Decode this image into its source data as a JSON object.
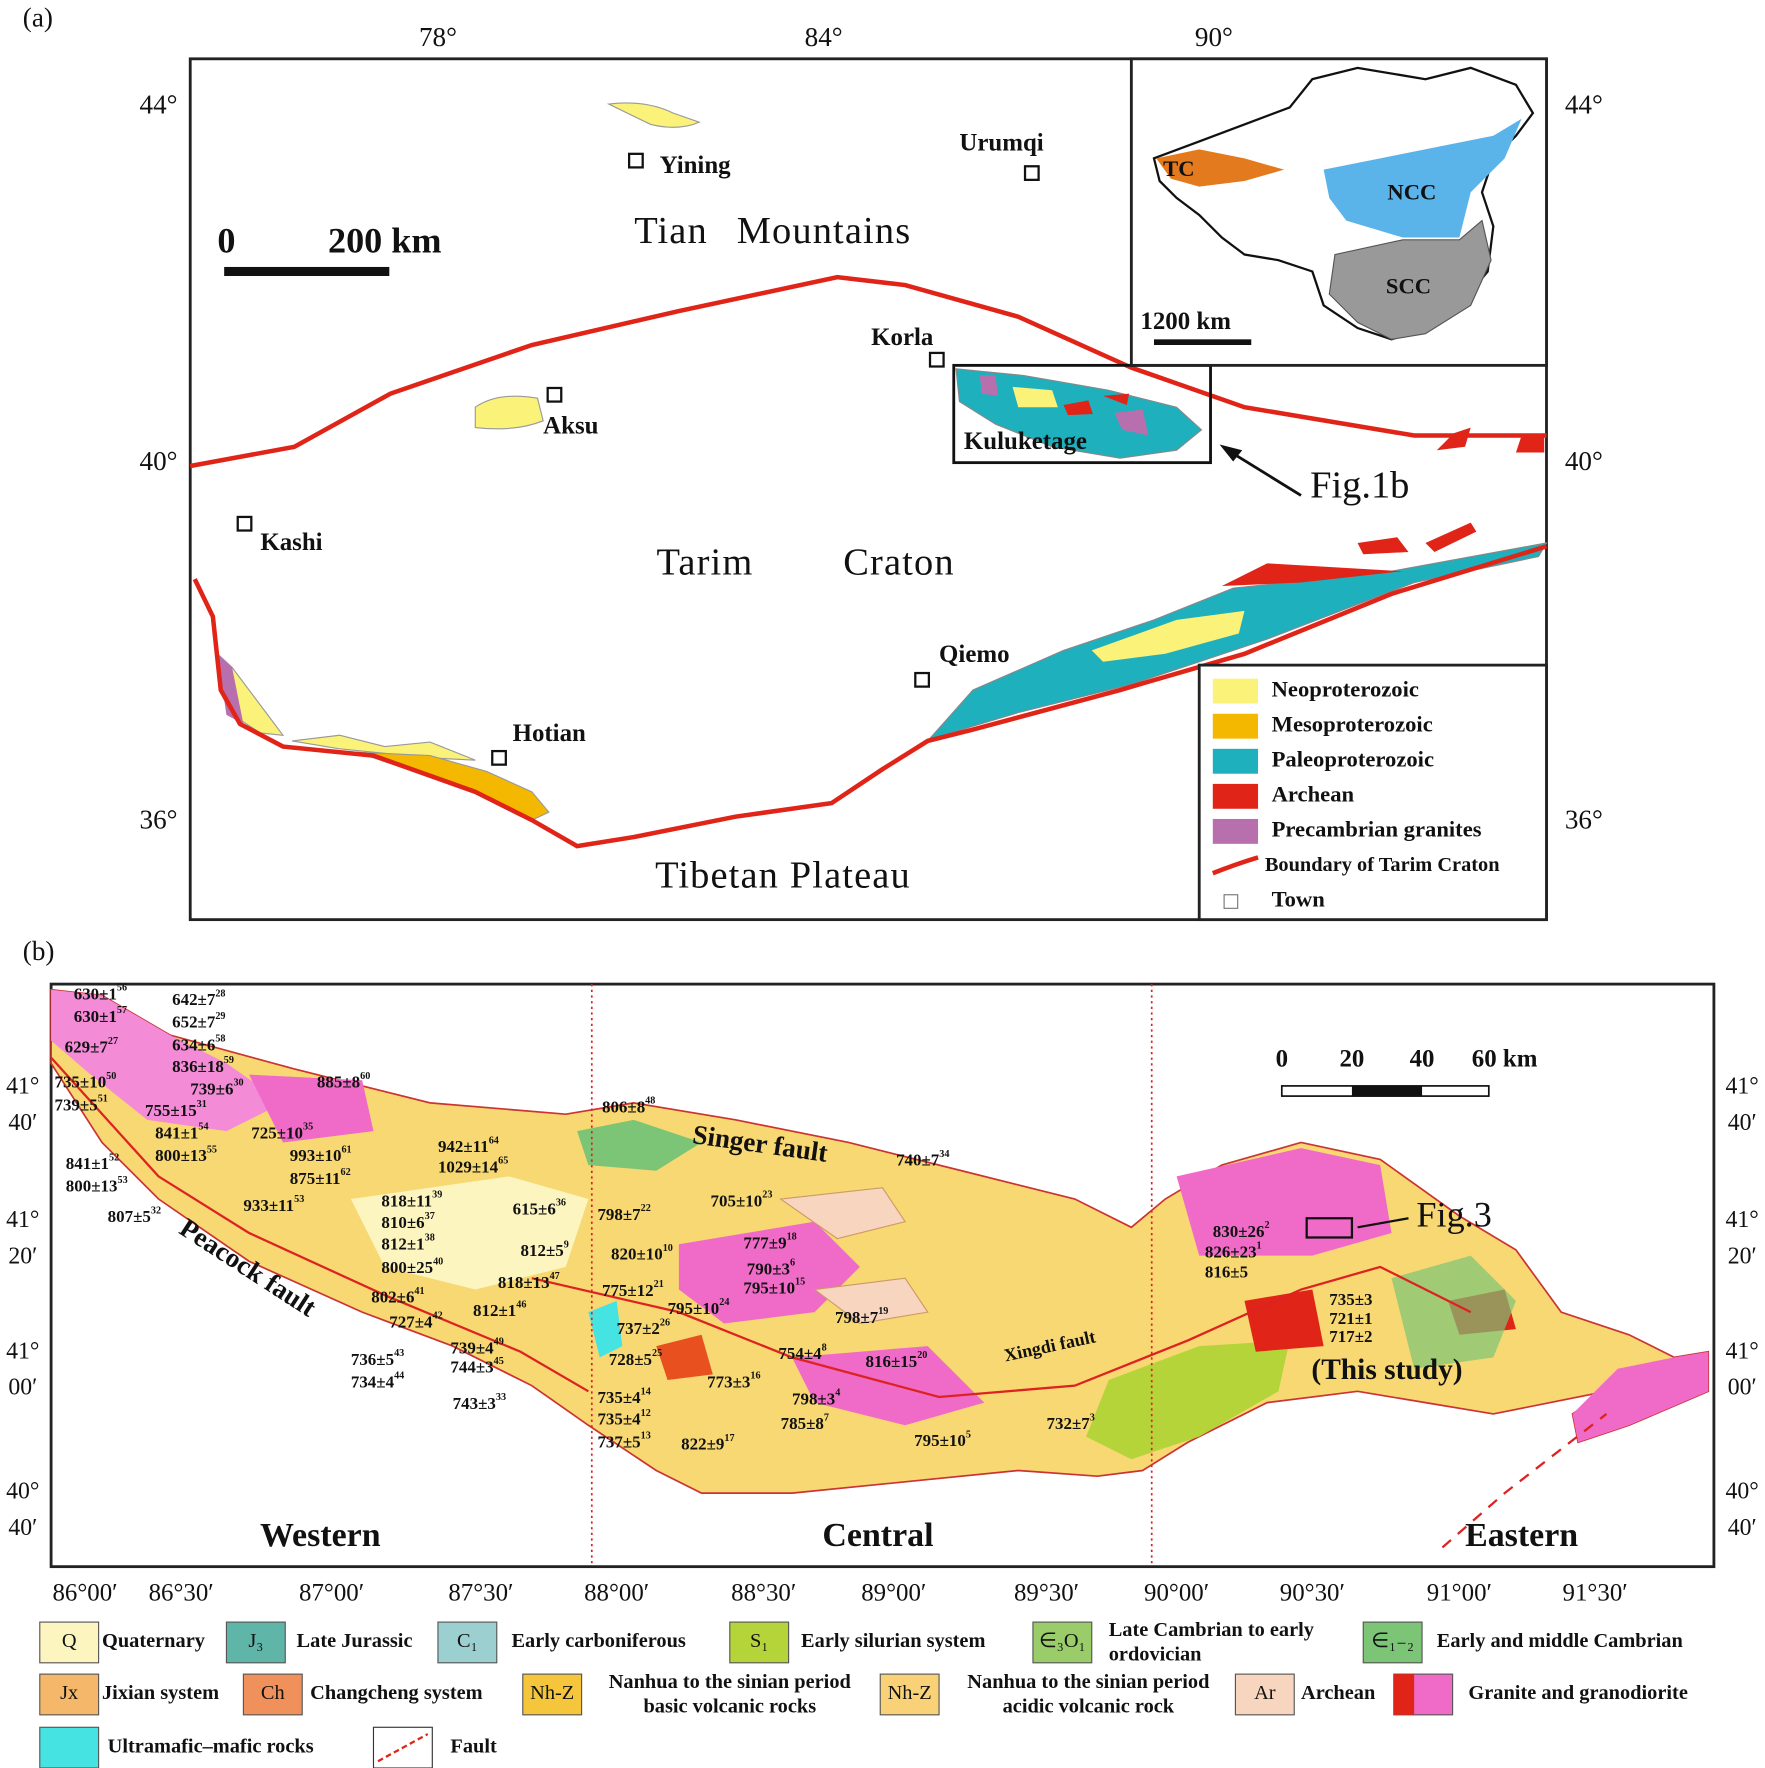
{
  "panel_a": {
    "label": "(a)",
    "longitudes": [
      "78°",
      "84°",
      "90°"
    ],
    "latitudes": [
      "44°",
      "40°",
      "36°"
    ],
    "towns": [
      "Yining",
      "Urumqi",
      "Korla",
      "Aksu",
      "Kashi",
      "Qiemo",
      "Hotian"
    ],
    "regions": [
      "Tian Mountains",
      "Tarim Craton",
      "Tibetan Plateau"
    ],
    "area": "Kuluketage",
    "scale": [
      "0",
      "200 km"
    ],
    "callout": "Fig.1b",
    "inset": {
      "blocks": [
        "TC",
        "NCC",
        "SCC"
      ],
      "scale": "1200 km"
    },
    "legend": [
      {
        "label": "Neoproterozoic",
        "color": "#fbf27a"
      },
      {
        "label": "Mesoproterozoic",
        "color": "#f5b800"
      },
      {
        "label": "Paleoproterozoic",
        "color": "#1fb0bd"
      },
      {
        "label": "Archean",
        "color": "#e02418"
      },
      {
        "label": "Precambrian granites",
        "color": "#b86fae"
      },
      {
        "label": "Boundary of Tarim Craton",
        "color": "#e02418"
      },
      {
        "label": "Town"
      }
    ]
  },
  "panel_b": {
    "label": "(b)",
    "longitudes": [
      "86°00′",
      "86°30′",
      "87°00′",
      "87°30′",
      "88°00′",
      "88°30′",
      "89°00′",
      "89°30′",
      "90°00′",
      "90°30′",
      "91°00′",
      "91°30′"
    ],
    "latitudes": [
      [
        "41°",
        "40′"
      ],
      [
        "41°",
        "20′"
      ],
      [
        "41°",
        "00′"
      ],
      [
        "40°",
        "40′"
      ]
    ],
    "sections": [
      "Western",
      "Central",
      "Eastern"
    ],
    "faults": [
      "Singer fault",
      "Peacock fault",
      "Xingdi fault"
    ],
    "scale": [
      "0",
      "20",
      "40",
      "60 km"
    ],
    "callout": "Fig.3",
    "study": "(This study)",
    "ages": [
      {
        "text": "630±1",
        "ref": "56"
      },
      {
        "text": "642±7",
        "ref": "28"
      },
      {
        "text": "630±1",
        "ref": "57"
      },
      {
        "text": "652±7",
        "ref": "29"
      },
      {
        "text": "629±7",
        "ref": "27"
      },
      {
        "text": "634±6",
        "ref": "58"
      },
      {
        "text": "836±18",
        "ref": "59"
      },
      {
        "text": "735±10",
        "ref": "50"
      },
      {
        "text": "739±6",
        "ref": "30"
      },
      {
        "text": "885±8",
        "ref": "60"
      },
      {
        "text": "739±5",
        "ref": "51"
      },
      {
        "text": "755±15",
        "ref": "31"
      },
      {
        "text": "841±1",
        "ref": "54"
      },
      {
        "text": "725±10",
        "ref": "35"
      },
      {
        "text": "800±13",
        "ref": "55"
      },
      {
        "text": "993±10",
        "ref": "61"
      },
      {
        "text": "942±11",
        "ref": "64"
      },
      {
        "text": "1029±14",
        "ref": "65"
      },
      {
        "text": "806±8",
        "ref": "48"
      },
      {
        "text": "841±1",
        "ref": "52"
      },
      {
        "text": "800±13",
        "ref": "53"
      },
      {
        "text": "875±11",
        "ref": "62"
      },
      {
        "text": "933±11",
        "ref": "53"
      },
      {
        "text": "807±5",
        "ref": "32"
      },
      {
        "text": "740±7",
        "ref": "34"
      },
      {
        "text": "818±11",
        "ref": "39"
      },
      {
        "text": "705±10",
        "ref": "23"
      },
      {
        "text": "615±6",
        "ref": "36"
      },
      {
        "text": "798±7",
        "ref": "22"
      },
      {
        "text": "810±6",
        "ref": "37"
      },
      {
        "text": "812±1",
        "ref": "38"
      },
      {
        "text": "812±5",
        "ref": "9"
      },
      {
        "text": "777±9",
        "ref": "18"
      },
      {
        "text": "820±10",
        "ref": "10"
      },
      {
        "text": "800±25",
        "ref": "40"
      },
      {
        "text": "790±3",
        "ref": "6"
      },
      {
        "text": "818±13",
        "ref": "47"
      },
      {
        "text": "795±10",
        "ref": "15"
      },
      {
        "text": "775±12",
        "ref": "21"
      },
      {
        "text": "802±6",
        "ref": "41"
      },
      {
        "text": "812±1",
        "ref": "46"
      },
      {
        "text": "795±10",
        "ref": "24"
      },
      {
        "text": "737±2",
        "ref": "26"
      },
      {
        "text": "798±7",
        "ref": "19"
      },
      {
        "text": "727±4",
        "ref": "42"
      },
      {
        "text": "739±4",
        "ref": "49"
      },
      {
        "text": "754±4",
        "ref": "8"
      },
      {
        "text": "736±5",
        "ref": "43"
      },
      {
        "text": "744±3",
        "ref": "45"
      },
      {
        "text": "728±5",
        "ref": "25"
      },
      {
        "text": "816±15",
        "ref": "20"
      },
      {
        "text": "734±4",
        "ref": "44"
      },
      {
        "text": "773±3",
        "ref": "16"
      },
      {
        "text": "735±4",
        "ref": "14"
      },
      {
        "text": "798±3",
        "ref": "4"
      },
      {
        "text": "743±3",
        "ref": "33"
      },
      {
        "text": "735±4",
        "ref": "12"
      },
      {
        "text": "785±8",
        "ref": "7"
      },
      {
        "text": "737±5",
        "ref": "13"
      },
      {
        "text": "822±9",
        "ref": "17"
      },
      {
        "text": "795±10",
        "ref": "5"
      },
      {
        "text": "732±7",
        "ref": "3"
      },
      {
        "text": "830±26",
        "ref": "2"
      },
      {
        "text": "826±23",
        "ref": "1"
      },
      {
        "text": "816±5"
      },
      {
        "text": "735±3"
      },
      {
        "text": "721±1"
      },
      {
        "text": "717±2"
      }
    ],
    "legend": [
      {
        "symbol": "Q",
        "name": [
          "Quaternary"
        ],
        "color": "#fdf5c0"
      },
      {
        "symbol": "J₃",
        "name": [
          "Late Jurassic"
        ],
        "color": "#5fb5a8"
      },
      {
        "symbol": "C₁",
        "name": [
          "Early carboniferous"
        ],
        "color": "#9ccfd0"
      },
      {
        "symbol": "S₁",
        "name": [
          "Early silurian system"
        ],
        "color": "#b5d43a"
      },
      {
        "symbol": "∈₃O₁",
        "name": [
          "Late Cambrian to early",
          "ordovician"
        ],
        "color": "#9acd6a"
      },
      {
        "symbol": "∈₁₋₂",
        "name": [
          "Early and middle Cambrian"
        ],
        "color": "#7cc576"
      },
      {
        "symbol": "Jx",
        "name": [
          "Jixian system"
        ],
        "color": "#f5b86a"
      },
      {
        "symbol": "Ch",
        "name": [
          "Changcheng system"
        ],
        "color": "#f0905a"
      },
      {
        "symbol": "Nh-Z",
        "name": [
          "Nanhua to the sinian period",
          "basic volcanic rocks"
        ],
        "color": "#f5c63b"
      },
      {
        "symbol": "Nh-Z",
        "name": [
          "Nanhua to the sinian period",
          "acidic volcanic rock"
        ],
        "color": "#f9d277"
      },
      {
        "symbol": "Ar",
        "name": [
          "Archean"
        ],
        "color": "#f8d5bf"
      },
      {
        "name": [
          "Granite and granodiorite"
        ],
        "color": "#f06bc8"
      },
      {
        "name": [
          "Ultramafic–mafic rocks"
        ],
        "color": "#46e3e3"
      },
      {
        "name": [
          "Fault"
        ],
        "color": "#e02418"
      }
    ]
  }
}
